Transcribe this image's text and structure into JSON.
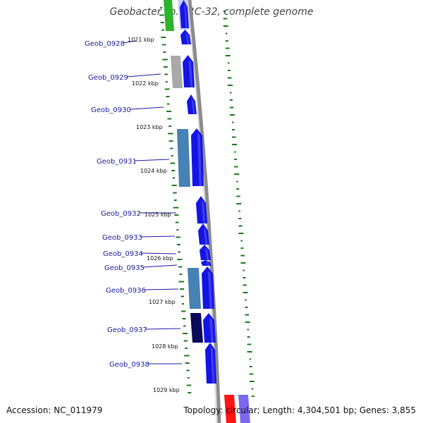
{
  "title": "Geobacter sp. FRC-32, complete genome",
  "accession": "Accession: NC_011979",
  "topology": "Topology: circular; Length: 4,304,501 bp; Genes: 3,855",
  "colors": {
    "forward_gene": "#1414e6",
    "cds_steelblue": "#4682b4",
    "cds_gray": "#a9a9a9",
    "cds_navy": "#0a0a5a",
    "green_feature": "#2bb52b",
    "red_feature": "#ff1414",
    "purple_feature": "#7b68ee",
    "gc_dots": "#1a7a1a",
    "backbone": "#8c8c8c",
    "label_text": "#1a1a9c"
  },
  "kbp_ticks": [
    {
      "label": "1021 kbp",
      "pos": 1021
    },
    {
      "label": "1022 kbp",
      "pos": 1022
    },
    {
      "label": "1023 kbp",
      "pos": 1023
    },
    {
      "label": "1024 kbp",
      "pos": 1024
    },
    {
      "label": "1025 kbp",
      "pos": 1025
    },
    {
      "label": "1026 kbp",
      "pos": 1026
    },
    {
      "label": "1027 kbp",
      "pos": 1027
    },
    {
      "label": "1028 kbp",
      "pos": 1028
    },
    {
      "label": "1029 kbp",
      "pos": 1029
    }
  ],
  "genes": [
    {
      "name": "Geob_0928"
    },
    {
      "name": "Geob_0929"
    },
    {
      "name": "Geob_0930"
    },
    {
      "name": "Geob_0931"
    },
    {
      "name": "Geob_0932"
    },
    {
      "name": "Geob_0933"
    },
    {
      "name": "Geob_0934"
    },
    {
      "name": "Geob_0935"
    },
    {
      "name": "Geob_0936"
    },
    {
      "name": "Geob_0937"
    },
    {
      "name": "Geob_0938"
    }
  ]
}
